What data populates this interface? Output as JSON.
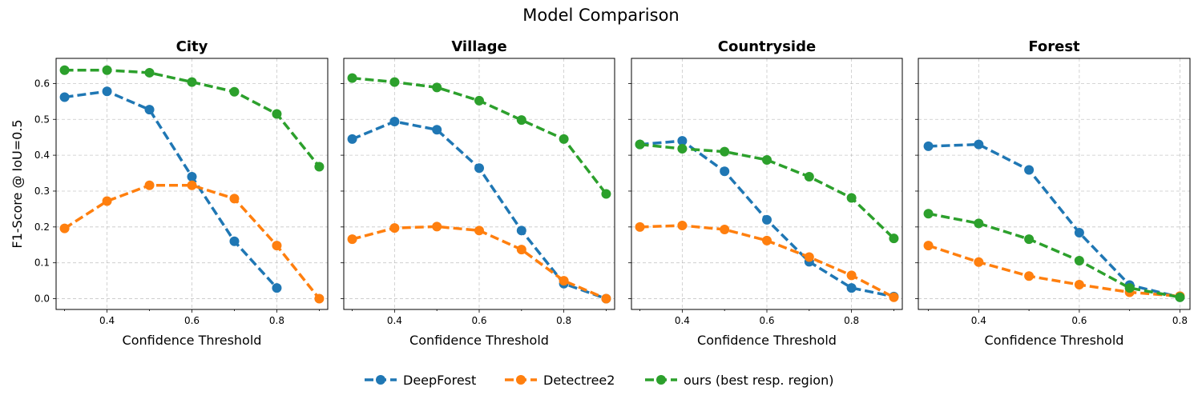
{
  "figure": {
    "title": "Model Comparison",
    "ylabel": "F1-Score @ IoU=0.5",
    "xlabel": "Confidence Threshold"
  },
  "legend": [
    {
      "key": "deepforest",
      "label": "DeepForest",
      "color": "#1f77b4"
    },
    {
      "key": "detectree2",
      "label": "Detectree2",
      "color": "#ff7f0e"
    },
    {
      "key": "ours",
      "label": "ours (best resp. region)",
      "color": "#2ca02c"
    }
  ],
  "chart_data": [
    {
      "type": "line",
      "title": "City",
      "xlabel": "Confidence Threshold",
      "ylabel": "F1-Score @ IoU=0.5",
      "xlim": [
        0.28,
        0.92
      ],
      "ylim": [
        -0.03,
        0.67
      ],
      "xticks": [
        0.4,
        0.6,
        0.8
      ],
      "yticks": [
        0.0,
        0.1,
        0.2,
        0.3,
        0.4,
        0.5,
        0.6
      ],
      "grid": true,
      "series": [
        {
          "name": "DeepForest",
          "x": [
            0.3,
            0.4,
            0.5,
            0.6,
            0.7,
            0.8
          ],
          "values": [
            0.562,
            0.578,
            0.527,
            0.34,
            0.16,
            0.03
          ]
        },
        {
          "name": "Detectree2",
          "x": [
            0.3,
            0.4,
            0.5,
            0.6,
            0.7,
            0.8,
            0.9
          ],
          "values": [
            0.196,
            0.272,
            0.316,
            0.316,
            0.279,
            0.148,
            0.0
          ]
        },
        {
          "name": "ours (best resp. region)",
          "x": [
            0.3,
            0.4,
            0.5,
            0.6,
            0.7,
            0.8,
            0.9
          ],
          "values": [
            0.637,
            0.637,
            0.63,
            0.604,
            0.577,
            0.515,
            0.368
          ]
        }
      ]
    },
    {
      "type": "line",
      "title": "Village",
      "xlabel": "Confidence Threshold",
      "xlim": [
        0.28,
        0.92
      ],
      "ylim": [
        -0.03,
        0.67
      ],
      "xticks": [
        0.4,
        0.6,
        0.8
      ],
      "yticks": [
        0.0,
        0.1,
        0.2,
        0.3,
        0.4,
        0.5,
        0.6
      ],
      "grid": true,
      "series": [
        {
          "name": "DeepForest",
          "x": [
            0.3,
            0.4,
            0.5,
            0.6,
            0.7,
            0.8,
            0.9
          ],
          "values": [
            0.445,
            0.494,
            0.471,
            0.364,
            0.19,
            0.042,
            0.0
          ]
        },
        {
          "name": "Detectree2",
          "x": [
            0.3,
            0.4,
            0.5,
            0.6,
            0.7,
            0.8,
            0.9
          ],
          "values": [
            0.166,
            0.197,
            0.201,
            0.19,
            0.137,
            0.05,
            0.0
          ]
        },
        {
          "name": "ours (best resp. region)",
          "x": [
            0.3,
            0.4,
            0.5,
            0.6,
            0.7,
            0.8,
            0.9
          ],
          "values": [
            0.615,
            0.604,
            0.589,
            0.552,
            0.498,
            0.445,
            0.292
          ]
        }
      ]
    },
    {
      "type": "line",
      "title": "Countryside",
      "xlabel": "Confidence Threshold",
      "xlim": [
        0.28,
        0.92
      ],
      "ylim": [
        -0.03,
        0.67
      ],
      "xticks": [
        0.4,
        0.6,
        0.8
      ],
      "yticks": [
        0.0,
        0.1,
        0.2,
        0.3,
        0.4,
        0.5,
        0.6
      ],
      "grid": true,
      "series": [
        {
          "name": "DeepForest",
          "x": [
            0.3,
            0.4,
            0.5,
            0.6,
            0.7,
            0.8,
            0.9
          ],
          "values": [
            0.43,
            0.44,
            0.355,
            0.22,
            0.103,
            0.03,
            0.006
          ]
        },
        {
          "name": "Detectree2",
          "x": [
            0.3,
            0.4,
            0.5,
            0.6,
            0.7,
            0.8,
            0.9
          ],
          "values": [
            0.2,
            0.204,
            0.193,
            0.162,
            0.116,
            0.065,
            0.004
          ]
        },
        {
          "name": "ours (best resp. region)",
          "x": [
            0.3,
            0.4,
            0.5,
            0.6,
            0.7,
            0.8,
            0.9
          ],
          "values": [
            0.43,
            0.418,
            0.41,
            0.387,
            0.34,
            0.281,
            0.168
          ]
        }
      ]
    },
    {
      "type": "line",
      "title": "Forest",
      "xlabel": "Confidence Threshold",
      "xlim": [
        0.28,
        0.82
      ],
      "ylim": [
        -0.03,
        0.67
      ],
      "xticks": [
        0.4,
        0.6,
        0.8
      ],
      "yticks": [
        0.0,
        0.1,
        0.2,
        0.3,
        0.4,
        0.5,
        0.6
      ],
      "grid": true,
      "series": [
        {
          "name": "DeepForest",
          "x": [
            0.3,
            0.4,
            0.5,
            0.6,
            0.7,
            0.8
          ],
          "values": [
            0.425,
            0.43,
            0.359,
            0.184,
            0.038,
            0.004
          ]
        },
        {
          "name": "Detectree2",
          "x": [
            0.3,
            0.4,
            0.5,
            0.6,
            0.7,
            0.8
          ],
          "values": [
            0.148,
            0.102,
            0.063,
            0.039,
            0.018,
            0.007
          ]
        },
        {
          "name": "ours (best resp. region)",
          "x": [
            0.3,
            0.4,
            0.5,
            0.6,
            0.7,
            0.8
          ],
          "values": [
            0.237,
            0.21,
            0.166,
            0.106,
            0.03,
            0.004
          ]
        }
      ]
    }
  ]
}
